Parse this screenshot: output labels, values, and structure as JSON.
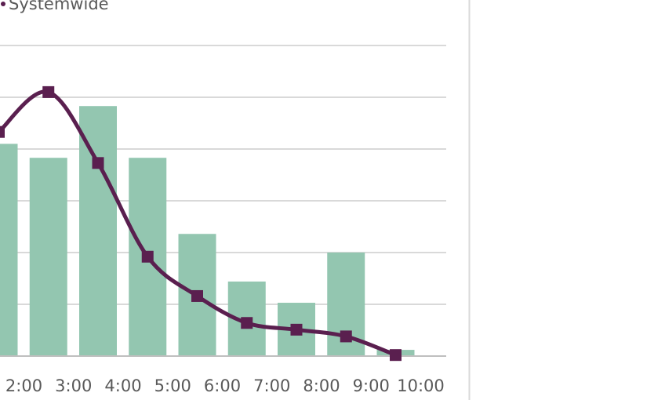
{
  "chart_data": {
    "type": "bar",
    "categories": [
      "2:00",
      "3:00",
      "4:00",
      "5:00",
      "6:00",
      "7:00",
      "8:00",
      "9:00",
      "10:00"
    ],
    "series": [
      {
        "type": "bar",
        "values": [
          41,
          38.3,
          48.3,
          38.3,
          23.6,
          14.4,
          10.3,
          20,
          1.2
        ],
        "color": "#93c6b0"
      },
      {
        "type": "line",
        "name": "Systemwide",
        "values": [
          43.3,
          51,
          37.3,
          19.2,
          11.6,
          6.4,
          5.1,
          3.8,
          0.2
        ],
        "color": "#5a1f4f"
      }
    ],
    "ylim": [
      0,
      60
    ],
    "grid": true,
    "legend": "top-left",
    "colors": {
      "grid": "#d9d9d9",
      "axis": "#bfbfbf",
      "divider": "#d9d9d9",
      "text": "#595959"
    }
  }
}
